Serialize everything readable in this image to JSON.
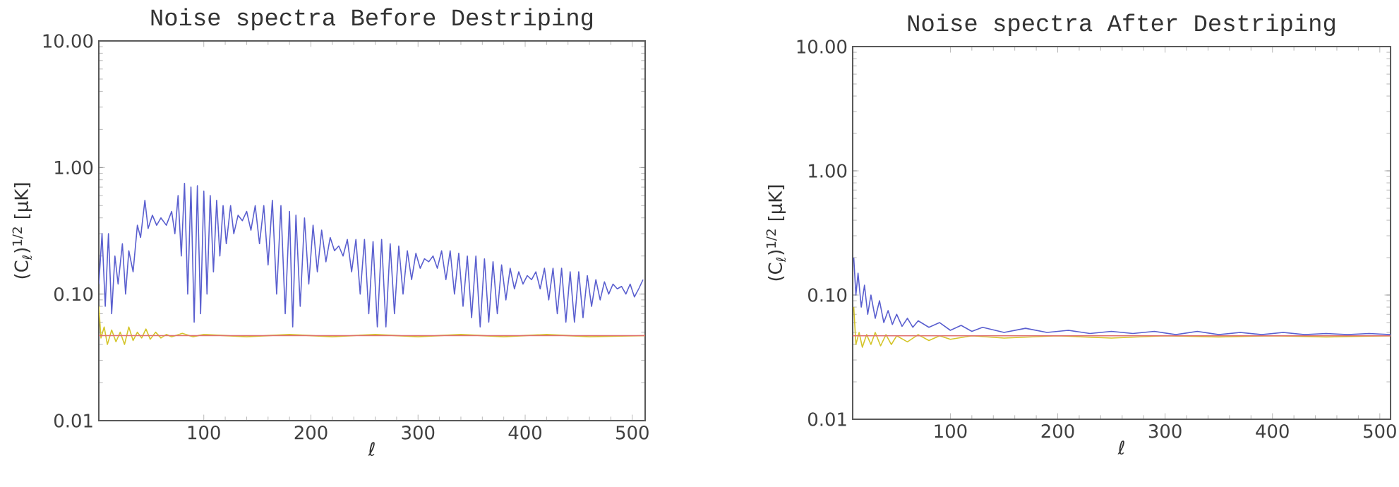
{
  "chart_data": [
    {
      "type": "line",
      "title": "Noise spectra Before Destriping",
      "xlabel": "ℓ",
      "ylabel": "(C$_{ℓ}$)$^{1/2}$ [μK]",
      "log": "y",
      "xlim": [
        2,
        512
      ],
      "ylim": [
        0.01,
        10
      ],
      "xticks": [
        100,
        200,
        300,
        400,
        500
      ],
      "yticks": [
        {
          "value": 0.01,
          "label": "0.01"
        },
        {
          "value": 0.1,
          "label": "0.10"
        },
        {
          "value": 1,
          "label": "1.00"
        },
        {
          "value": 10,
          "label": "10.00"
        }
      ],
      "series": [
        {
          "color": "#5a5fcf",
          "x": [
            2,
            5,
            8,
            11,
            14,
            17,
            20,
            24,
            27,
            30,
            34,
            38,
            41,
            45,
            48,
            52,
            56,
            60,
            65,
            70,
            73,
            76,
            79,
            82,
            85,
            88,
            91,
            94,
            97,
            100,
            103,
            106,
            109,
            112,
            115,
            118,
            121,
            125,
            128,
            132,
            136,
            140,
            144,
            148,
            152,
            156,
            160,
            164,
            168,
            172,
            176,
            180,
            183,
            186,
            190,
            194,
            198,
            202,
            206,
            210,
            214,
            218,
            222,
            226,
            230,
            234,
            238,
            242,
            246,
            250,
            254,
            258,
            262,
            266,
            270,
            274,
            278,
            282,
            286,
            290,
            294,
            298,
            302,
            306,
            310,
            314,
            318,
            322,
            326,
            330,
            334,
            338,
            342,
            346,
            350,
            354,
            358,
            362,
            366,
            370,
            374,
            378,
            382,
            386,
            390,
            394,
            398,
            402,
            406,
            410,
            414,
            418,
            422,
            426,
            430,
            434,
            438,
            442,
            446,
            450,
            454,
            458,
            462,
            466,
            470,
            474,
            478,
            482,
            486,
            490,
            494,
            498,
            502,
            506,
            510
          ],
          "values": [
            0.12,
            0.3,
            0.08,
            0.3,
            0.07,
            0.2,
            0.12,
            0.25,
            0.1,
            0.22,
            0.15,
            0.35,
            0.28,
            0.55,
            0.33,
            0.42,
            0.35,
            0.4,
            0.35,
            0.45,
            0.3,
            0.6,
            0.2,
            0.75,
            0.1,
            0.7,
            0.06,
            0.72,
            0.07,
            0.65,
            0.1,
            0.6,
            0.15,
            0.55,
            0.2,
            0.5,
            0.25,
            0.5,
            0.3,
            0.42,
            0.38,
            0.45,
            0.32,
            0.5,
            0.25,
            0.5,
            0.17,
            0.55,
            0.1,
            0.5,
            0.07,
            0.45,
            0.055,
            0.42,
            0.08,
            0.4,
            0.12,
            0.35,
            0.15,
            0.32,
            0.18,
            0.28,
            0.22,
            0.24,
            0.2,
            0.27,
            0.15,
            0.27,
            0.1,
            0.27,
            0.07,
            0.26,
            0.055,
            0.27,
            0.055,
            0.25,
            0.07,
            0.24,
            0.1,
            0.22,
            0.13,
            0.21,
            0.16,
            0.19,
            0.18,
            0.2,
            0.16,
            0.22,
            0.13,
            0.22,
            0.1,
            0.21,
            0.08,
            0.2,
            0.065,
            0.2,
            0.055,
            0.19,
            0.06,
            0.18,
            0.07,
            0.17,
            0.09,
            0.16,
            0.11,
            0.15,
            0.12,
            0.14,
            0.13,
            0.15,
            0.11,
            0.16,
            0.09,
            0.16,
            0.07,
            0.16,
            0.06,
            0.15,
            0.06,
            0.15,
            0.065,
            0.14,
            0.08,
            0.13,
            0.09,
            0.125,
            0.1,
            0.12,
            0.11,
            0.115,
            0.1,
            0.12,
            0.095,
            0.11,
            0.13
          ]
        },
        {
          "color": "#d4c52a",
          "x": [
            2,
            4,
            7,
            10,
            14,
            18,
            22,
            26,
            30,
            34,
            38,
            42,
            46,
            50,
            55,
            60,
            65,
            70,
            80,
            90,
            100,
            140,
            180,
            220,
            260,
            300,
            340,
            380,
            420,
            460,
            512
          ],
          "values": [
            0.08,
            0.045,
            0.055,
            0.04,
            0.052,
            0.042,
            0.05,
            0.04,
            0.055,
            0.043,
            0.05,
            0.045,
            0.053,
            0.044,
            0.05,
            0.045,
            0.048,
            0.046,
            0.049,
            0.046,
            0.048,
            0.046,
            0.048,
            0.046,
            0.048,
            0.046,
            0.048,
            0.046,
            0.048,
            0.046,
            0.047
          ]
        },
        {
          "color": "#e07070",
          "x": [
            2,
            512
          ],
          "values": [
            0.047,
            0.047
          ]
        }
      ]
    },
    {
      "type": "line",
      "title": "Noise spectra After Destriping",
      "xlabel": "ℓ",
      "ylabel": "(C$_{ℓ}$)$^{1/2}$ [μK]",
      "log": "y",
      "xlim": [
        9,
        510
      ],
      "ylim": [
        0.01,
        10
      ],
      "xticks": [
        100,
        200,
        300,
        400,
        500
      ],
      "yticks": [
        {
          "value": 0.01,
          "label": "0.01"
        },
        {
          "value": 0.1,
          "label": "0.10"
        },
        {
          "value": 1,
          "label": "1.00"
        },
        {
          "value": 10,
          "label": "10.00"
        }
      ],
      "series": [
        {
          "color": "#5a5fcf",
          "x": [
            10,
            12,
            14,
            17,
            20,
            23,
            26,
            30,
            34,
            38,
            42,
            46,
            50,
            55,
            60,
            65,
            70,
            80,
            90,
            100,
            110,
            120,
            130,
            150,
            170,
            190,
            210,
            230,
            250,
            270,
            290,
            310,
            330,
            350,
            370,
            390,
            410,
            430,
            450,
            470,
            490,
            510
          ],
          "values": [
            0.2,
            0.1,
            0.15,
            0.08,
            0.12,
            0.07,
            0.1,
            0.065,
            0.09,
            0.06,
            0.075,
            0.058,
            0.07,
            0.056,
            0.065,
            0.055,
            0.062,
            0.055,
            0.06,
            0.052,
            0.057,
            0.051,
            0.055,
            0.05,
            0.054,
            0.05,
            0.052,
            0.049,
            0.051,
            0.049,
            0.051,
            0.048,
            0.051,
            0.048,
            0.05,
            0.048,
            0.05,
            0.048,
            0.049,
            0.048,
            0.049,
            0.048
          ]
        },
        {
          "color": "#d4c52a",
          "x": [
            10,
            12,
            15,
            18,
            22,
            26,
            30,
            35,
            40,
            45,
            50,
            60,
            70,
            80,
            90,
            100,
            120,
            150,
            200,
            250,
            300,
            350,
            400,
            450,
            510
          ],
          "values": [
            0.08,
            0.04,
            0.05,
            0.038,
            0.048,
            0.04,
            0.05,
            0.039,
            0.048,
            0.04,
            0.047,
            0.042,
            0.048,
            0.043,
            0.047,
            0.044,
            0.047,
            0.045,
            0.047,
            0.045,
            0.047,
            0.046,
            0.047,
            0.046,
            0.047
          ]
        },
        {
          "color": "#e07070",
          "x": [
            9,
            510
          ],
          "values": [
            0.047,
            0.047
          ]
        }
      ]
    }
  ]
}
